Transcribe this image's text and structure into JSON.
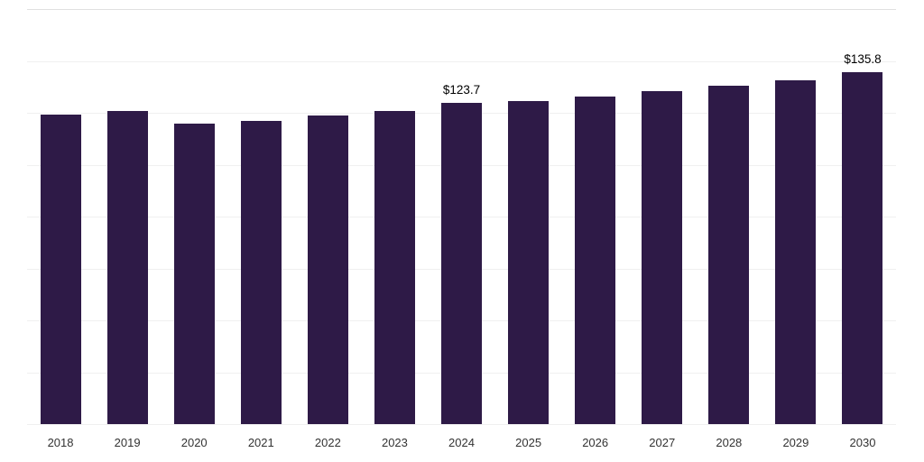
{
  "chart_data": {
    "type": "bar",
    "title": "",
    "xlabel": "",
    "ylabel": "",
    "categories": [
      "2018",
      "2019",
      "2020",
      "2021",
      "2022",
      "2023",
      "2024",
      "2025",
      "2026",
      "2027",
      "2028",
      "2029",
      "2030"
    ],
    "values": [
      119.2,
      120.6,
      115.8,
      116.9,
      118.9,
      120.6,
      123.7,
      124.4,
      126.1,
      128.3,
      130.4,
      132.5,
      135.8
    ],
    "data_labels": {
      "2024": "$123.7",
      "2030": "$135.8"
    },
    "ylim": [
      0,
      160
    ],
    "grid_divisions": 8,
    "grid": "horizontal",
    "legend": "none",
    "bar_color": "#2e1a47",
    "gridline_color": "#f0f0f0",
    "top_line_color": "#e0e0e0",
    "label_color": "#333333",
    "data_label_color": "#000000",
    "background": "#ffffff"
  }
}
